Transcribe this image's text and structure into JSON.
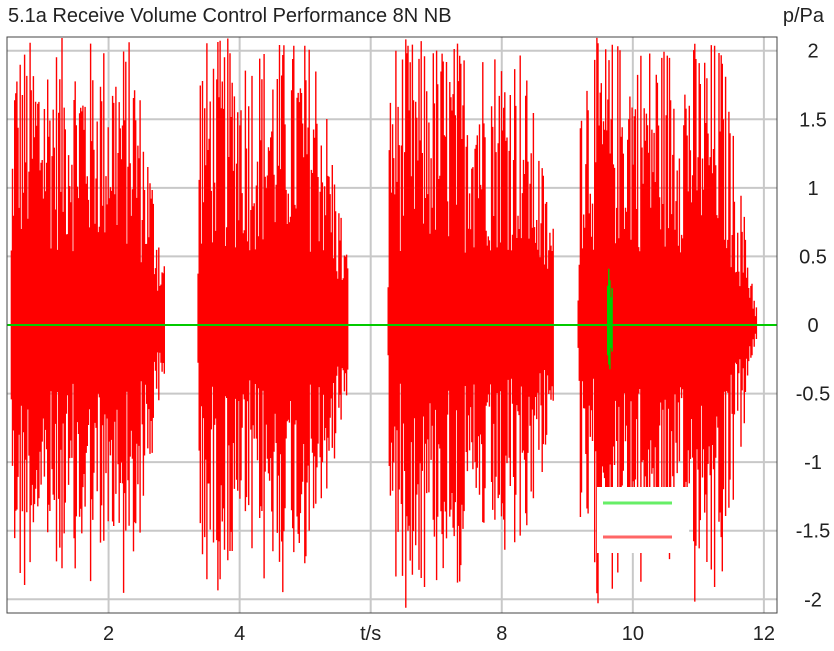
{
  "chart_data": {
    "type": "line",
    "title": "5.1a Receive Volume Control Performance 8N NB",
    "xlabel": "t/s",
    "ylabel": "p/Pa",
    "xlim": [
      0.45,
      12.2
    ],
    "ylim": [
      -2.1,
      2.1
    ],
    "x_ticks": [
      2,
      4,
      6,
      8,
      10,
      12
    ],
    "x_tick_labels": [
      "2",
      "4",
      "t/s",
      "8",
      "10",
      "12"
    ],
    "y_ticks": [
      2,
      1.5,
      1,
      0.5,
      0,
      -0.5,
      -1,
      -1.5,
      -2
    ],
    "y_tick_labels": [
      "2",
      "1.5",
      "1",
      "0.5",
      "0",
      "-0.5",
      "-1",
      "-1.5",
      "-2"
    ],
    "grid": true,
    "legend_position": "bottom-right",
    "series": [
      {
        "color": "#ff0000",
        "kind": "speech bursts (waveform envelope)",
        "baseline": 0,
        "segments": [
          {
            "start": 0.5,
            "end": 2.85,
            "peak": 2.1,
            "tail": 0.5
          },
          {
            "start": 3.35,
            "end": 5.65,
            "peak": 2.1,
            "tail": 0.5
          },
          {
            "start": 6.25,
            "end": 8.8,
            "peak": 2.1,
            "tail": 0.7
          },
          {
            "start": 9.15,
            "end": 11.9,
            "peak": 2.1,
            "tail": 0.1
          }
        ]
      },
      {
        "color": "#00cc00",
        "kind": "reference (mostly hidden)",
        "baseline": 0,
        "segments": [
          {
            "start": 9.6,
            "end": 9.7,
            "peak": 0.45,
            "tail": 0.1
          }
        ]
      }
    ],
    "legend": [
      {
        "color": "#66ee66"
      },
      {
        "color": "#ff6666"
      }
    ]
  }
}
